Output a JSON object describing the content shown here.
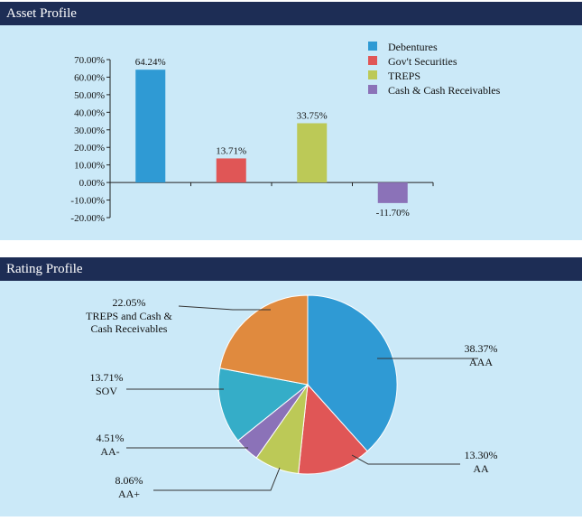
{
  "asset_profile": {
    "title": "Asset Profile"
  },
  "rating_profile": {
    "title": "Rating Profile"
  },
  "chart_data": [
    {
      "type": "bar",
      "categories": [
        "Debentures",
        "Gov't Securities",
        "TREPS",
        "Cash & Cash Receivables"
      ],
      "values": [
        64.24,
        13.71,
        33.75,
        -11.7
      ],
      "value_labels": [
        "64.24%",
        "13.71%",
        "33.75%",
        "-11.70%"
      ],
      "colors": [
        "#2f9ad4",
        "#e05656",
        "#bcc957",
        "#8b72b8"
      ],
      "yticks": [
        "70.00%",
        "60.00%",
        "50.00%",
        "40.00%",
        "30.00%",
        "20.00%",
        "10.00%",
        "0.00%",
        "-10.00%",
        "-20.00%"
      ],
      "ylim": [
        -20,
        70
      ],
      "legend": [
        "Debentures",
        "Gov't Securities",
        "TREPS",
        "Cash & Cash Receivables"
      ],
      "legend_position": "top-right",
      "grid": false
    },
    {
      "type": "pie",
      "slices": [
        {
          "label": "AAA",
          "value": 38.37,
          "pct": "38.37%",
          "color": "#2f9ad4"
        },
        {
          "label": "AA",
          "value": 13.3,
          "pct": "13.30%",
          "color": "#e05656"
        },
        {
          "label": "AA+",
          "value": 8.06,
          "pct": "8.06%",
          "color": "#bcc957"
        },
        {
          "label": "AA-",
          "value": 4.51,
          "pct": "4.51%",
          "color": "#8b72b8"
        },
        {
          "label": "SOV",
          "value": 13.71,
          "pct": "13.71%",
          "color": "#35adc8"
        },
        {
          "label": "TREPS and Cash & Cash Receivables",
          "label_lines": [
            "TREPS and Cash &",
            "Cash Receivables"
          ],
          "value": 22.05,
          "pct": "22.05%",
          "color": "#e08a3e"
        }
      ]
    }
  ]
}
